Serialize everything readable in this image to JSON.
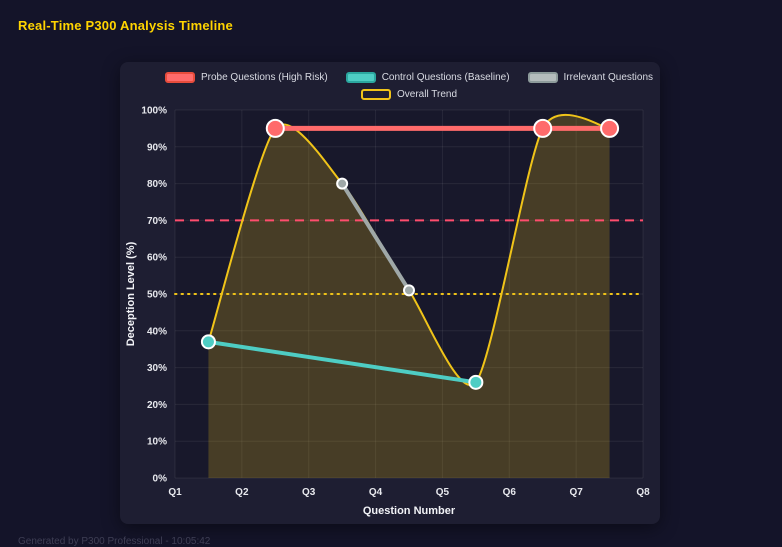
{
  "header": {
    "title": "Real-Time P300 Analysis Timeline"
  },
  "footer": {
    "text": "Generated by P300 Professional - 10:05:42"
  },
  "colors": {
    "page_background": "#141429",
    "panel_background": "#1e1e32",
    "plot_background": "#18182b",
    "title_accent": "#ffd400",
    "grid": "rgba(255,255,255,0.07)",
    "tick_text": "#e8e9ee",
    "axis_title_text": "#f2f3f7"
  },
  "chart_data": {
    "type": "line",
    "title": "Real-Time P300 Analysis Timeline",
    "xlabel": "Question Number",
    "ylabel": "Deception Level (%)",
    "x_tick_labels": [
      "Q1",
      "Q2",
      "Q3",
      "Q4",
      "Q5",
      "Q6",
      "Q7",
      "Q8"
    ],
    "x_tick_values": [
      1,
      2,
      3,
      4,
      5,
      6,
      7,
      8
    ],
    "xlim": [
      1,
      8
    ],
    "ylim": [
      0,
      100
    ],
    "y_tick_step": 10,
    "y_tick_suffix": "%",
    "grid": true,
    "legend_position": "top",
    "legend_rows": [
      [
        0,
        1,
        2
      ],
      [
        3
      ]
    ],
    "thresholds": [
      {
        "name": "high-risk-threshold",
        "value": 70,
        "color": "#ff4d6d",
        "style": "dashed"
      },
      {
        "name": "baseline-threshold",
        "value": 50,
        "color": "#f0c419",
        "style": "dotted"
      }
    ],
    "series": [
      {
        "name": "Probe Questions (High Risk)",
        "slug": "probe",
        "color": "#ff6b6b",
        "line_width": 5,
        "point_radius": 8.5,
        "point_border": "#ffffff",
        "smooth": false,
        "x": [
          2.5,
          6.5,
          7.5
        ],
        "y": [
          95,
          95,
          95
        ],
        "swatch": {
          "fill": "#ff6b6b",
          "border": "#e74c3c"
        }
      },
      {
        "name": "Control Questions (Baseline)",
        "slug": "control",
        "color": "#4ecdc4",
        "line_width": 4,
        "point_radius": 6.5,
        "point_border": "#ffffff",
        "smooth": false,
        "x": [
          1.5,
          5.5
        ],
        "y": [
          37,
          26
        ],
        "swatch": {
          "fill": "#4ecdc4",
          "border": "#2ba79f"
        }
      },
      {
        "name": "Irrelevant Questions",
        "slug": "irrelevant",
        "color": "#9fa8a8",
        "line_width": 4,
        "point_radius": 5,
        "point_border": "#ffffff",
        "smooth": false,
        "x": [
          3.5,
          4.5
        ],
        "y": [
          80,
          51
        ],
        "swatch": {
          "fill": "#b4bcbc",
          "border": "#8d9b9b"
        }
      },
      {
        "name": "Overall Trend",
        "slug": "trend",
        "color": "#f0c419",
        "line_width": 2,
        "point_radius": 0,
        "smooth": true,
        "fill": "rgba(240,196,25,0.22)",
        "x": [
          1.5,
          2.5,
          3.5,
          4.5,
          5.5,
          6.5,
          7.5
        ],
        "y": [
          37,
          95,
          80,
          51,
          26,
          95,
          95
        ],
        "swatch": {
          "fill": "rgba(0,0,0,0)",
          "border": "#f0c419"
        }
      }
    ]
  }
}
